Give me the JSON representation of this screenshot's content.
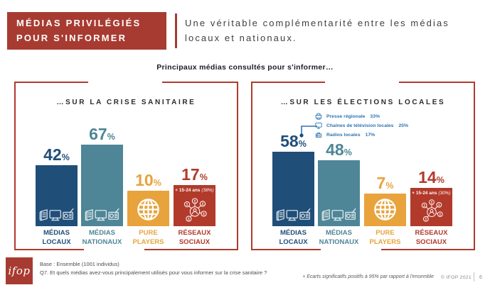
{
  "colors": {
    "accent_red": "#A73B31",
    "border_red": "#B03A2E",
    "bar_blue": "#1F4E79",
    "bar_teal": "#4E8697",
    "bar_orange": "#E8A33C",
    "bar_red": "#B23A2B",
    "callout_blue": "#2E74B5"
  },
  "header": {
    "title_line1": "MÉDIAS PRIVILÉGIÉS",
    "title_line2": "POUR S'INFORMER",
    "subtitle": "Une véritable complémentarité entre les médias locaux et nationaux."
  },
  "section_heading": "Principaux médias consultés pour s'informer…",
  "pct_symbol": "%",
  "charts": [
    {
      "title": "…SUR LA CRISE SANITAIRE",
      "bars": [
        {
          "value": 42,
          "pct": "42",
          "label_line1": "MÉDIAS",
          "label_line2": "LOCAUX",
          "color": "#1F4E79",
          "icon": "media-trio"
        },
        {
          "value": 67,
          "pct": "67",
          "label_line1": "MÉDIAS",
          "label_line2": "NATIONAUX",
          "color": "#4E8697",
          "icon": "media-trio"
        },
        {
          "value": 10,
          "pct": "10",
          "label_line1": "PURE",
          "label_line2": "PLAYERS",
          "color": "#E8A33C",
          "icon": "globe"
        },
        {
          "value": 17,
          "pct": "17",
          "label_line1": "RÉSEAUX",
          "label_line2": "SOCIAUX",
          "color": "#B23A2B",
          "icon": "social-network",
          "annotation": "+ 15-24 ans ",
          "annotation_note": "(38%)"
        }
      ]
    },
    {
      "title": "…SUR LES ÉLECTIONS LOCALES",
      "callout": {
        "items": [
          {
            "icon": "press",
            "label": "Presse régionale",
            "value": "33%"
          },
          {
            "icon": "tv",
            "label": "Chaînes de télévision locales",
            "value": "25%"
          },
          {
            "icon": "radio",
            "label": "Radios locales",
            "value": "17%"
          }
        ]
      },
      "bars": [
        {
          "value": 58,
          "pct": "58",
          "label_line1": "MÉDIAS",
          "label_line2": "LOCAUX",
          "color": "#1F4E79",
          "icon": "media-trio"
        },
        {
          "value": 48,
          "pct": "48",
          "label_line1": "MÉDIAS",
          "label_line2": "NATIONAUX",
          "color": "#4E8697",
          "icon": "media-trio"
        },
        {
          "value": 7,
          "pct": "7",
          "label_line1": "PURE",
          "label_line2": "PLAYERS",
          "color": "#E8A33C",
          "icon": "globe"
        },
        {
          "value": 14,
          "pct": "14",
          "label_line1": "RÉSEAUX",
          "label_line2": "SOCIAUX",
          "color": "#B23A2B",
          "icon": "social-network",
          "annotation": "+ 15-24 ans ",
          "annotation_note": "(30%)"
        }
      ]
    }
  ],
  "footer": {
    "logo": "ifop",
    "base": "Base : Ensemble (1001 individus)",
    "question": "Q7. Et quels médias avez-vous principalement utilisés pour vous informer sur la crise sanitaire ?",
    "note": "+ Ecarts significatifs positifs à 95% par rapport à l'ensemble",
    "copyright": "© IFOP 2021",
    "page": "6"
  },
  "chart_data": [
    {
      "type": "bar",
      "title": "…SUR LA CRISE SANITAIRE",
      "categories": [
        "Médias locaux",
        "Médias nationaux",
        "Pure players",
        "Réseaux sociaux"
      ],
      "values": [
        42,
        67,
        10,
        17
      ],
      "unit": "%",
      "ylim": [
        0,
        100
      ],
      "grid": false,
      "legend": "none",
      "annotations": [
        "Réseaux sociaux : + 15-24 ans (38%)"
      ]
    },
    {
      "type": "bar",
      "title": "…SUR LES ÉLECTIONS LOCALES",
      "categories": [
        "Médias locaux",
        "Médias nationaux",
        "Pure players",
        "Réseaux sociaux"
      ],
      "values": [
        58,
        48,
        7,
        14
      ],
      "unit": "%",
      "ylim": [
        0,
        100
      ],
      "grid": false,
      "legend": "none",
      "annotations": [
        "Réseaux sociaux : + 15-24 ans (30%)"
      ],
      "medias_locaux_detail": {
        "Presse régionale": 33,
        "Chaînes de télévision locales": 25,
        "Radios locales": 17
      }
    }
  ]
}
